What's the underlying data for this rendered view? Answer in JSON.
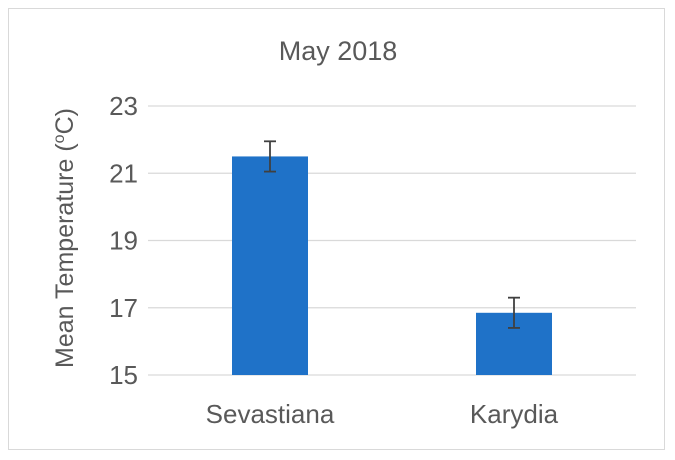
{
  "chart_data": {
    "type": "bar",
    "title": "May 2018",
    "xlabel": "",
    "ylabel": "Mean Temperature (",
    "ylabel_sup": "o",
    "ylabel_suffix": "C)",
    "categories": [
      "Sevastiana",
      "Karydia"
    ],
    "values": [
      21.5,
      16.85
    ],
    "error": [
      0.45,
      0.45
    ],
    "ylim": [
      15,
      23
    ],
    "yticks": [
      15,
      17,
      19,
      21,
      23
    ],
    "grid": true,
    "legend": "none",
    "colors": {
      "bar": "#1f72c8",
      "grid": "#d9d9d9",
      "errorbar": "#404040"
    }
  }
}
